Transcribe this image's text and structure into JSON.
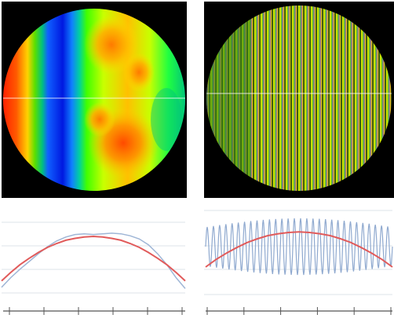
{
  "panels": {
    "left_map": {
      "icon": "surface-heatmap",
      "background": "#000000"
    },
    "right_map": {
      "icon": "fringe-pattern-map",
      "background": "#000000"
    },
    "left_profile": {
      "fit_color": "#e15b5b",
      "trace_color": "#9fb6d6",
      "axis_color": "#555555"
    },
    "right_profile": {
      "fit_color": "#e15b5b",
      "trace_color": "#8fa9cf",
      "axis_color": "#555555"
    }
  },
  "chart_data": [
    {
      "type": "line",
      "title": "",
      "xlabel": "",
      "ylabel": "",
      "x": [
        0,
        0.05,
        0.1,
        0.15,
        0.2,
        0.25,
        0.3,
        0.35,
        0.4,
        0.45,
        0.5,
        0.55,
        0.6,
        0.65,
        0.7,
        0.75,
        0.8,
        0.85,
        0.9,
        0.95,
        1
      ],
      "series": [
        {
          "values": [
            0.1,
            0.25,
            0.38,
            0.5,
            0.62,
            0.73,
            0.82,
            0.88,
            0.92,
            0.93,
            0.92,
            0.93,
            0.94,
            0.93,
            0.9,
            0.85,
            0.76,
            0.62,
            0.45,
            0.25,
            0.08
          ]
        },
        {
          "values": [
            0.2,
            0.33,
            0.45,
            0.55,
            0.64,
            0.72,
            0.78,
            0.83,
            0.86,
            0.88,
            0.89,
            0.88,
            0.86,
            0.83,
            0.78,
            0.72,
            0.64,
            0.55,
            0.45,
            0.33,
            0.2
          ]
        }
      ],
      "xticks": 6
    },
    {
      "type": "line",
      "title": "",
      "xlabel": "",
      "ylabel": "",
      "oscillation_cycles": 30,
      "series": [
        {
          "values": [
            0.3,
            0.42,
            0.52,
            0.61,
            0.69,
            0.75,
            0.8,
            0.83,
            0.85,
            0.86,
            0.85,
            0.83,
            0.8,
            0.75,
            0.69,
            0.61,
            0.52,
            0.42,
            0.3
          ]
        }
      ],
      "xticks": 6
    }
  ]
}
